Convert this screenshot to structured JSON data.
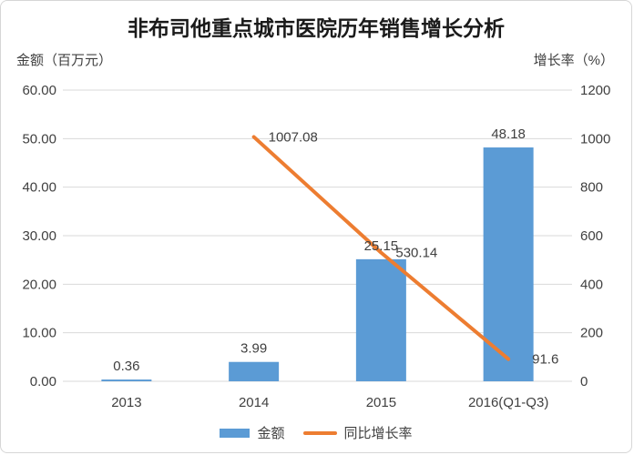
{
  "chart_data": {
    "type": "combo-bar-line",
    "title": "非布司他重点城市医院历年销售增长分析",
    "categories": [
      "2013",
      "2014",
      "2015",
      "2016(Q1-Q3)"
    ],
    "series": [
      {
        "name": "金额",
        "type": "bar",
        "axis": "left",
        "color": "#5B9BD5",
        "values": [
          0.36,
          3.99,
          25.15,
          48.18
        ],
        "labels": [
          "0.36",
          "3.99",
          "25.15",
          "48.18"
        ]
      },
      {
        "name": "同比增长率",
        "type": "line",
        "axis": "right",
        "color": "#ED7D31",
        "values": [
          null,
          1007.08,
          530.14,
          91.6
        ],
        "labels": [
          null,
          "1007.08",
          "530.14",
          "91.6"
        ]
      }
    ],
    "left_axis": {
      "title": "金额（百万元）",
      "min": 0,
      "max": 60,
      "tick_labels": [
        "60.00",
        "50.00",
        "40.00",
        "30.00",
        "20.00",
        "10.00",
        "0.00"
      ]
    },
    "right_axis": {
      "title": "增长率（%）",
      "min": 0,
      "max": 1200,
      "tick_labels": [
        "1200",
        "1000",
        "800",
        "600",
        "400",
        "200",
        "0"
      ]
    },
    "grid": true,
    "legend_position": "bottom"
  },
  "colors": {
    "bar": "#5B9BD5",
    "line": "#ED7D31",
    "gridline": "#D9D9D9",
    "axis_text": "#404040",
    "title_text": "#1A1A1A",
    "border": "#D6D6D6",
    "background": "#FFFFFF"
  }
}
